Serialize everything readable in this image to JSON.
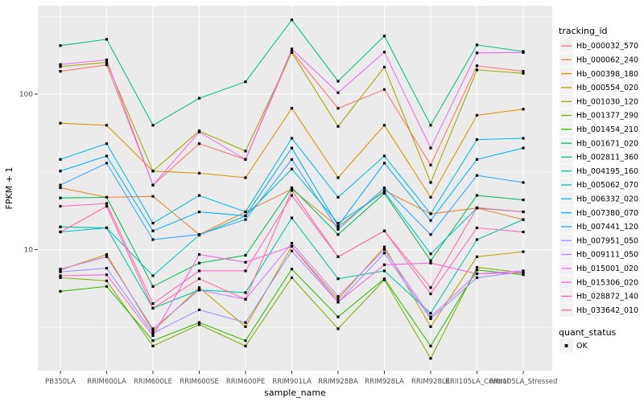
{
  "chart_data": {
    "type": "line",
    "title": "",
    "xlabel": "sample_name",
    "ylabel": "FPKM + 1",
    "y_scale": "log10",
    "y_breaks": [
      100,
      10
    ],
    "y_tick_labels": [
      "100",
      "10"
    ],
    "y_minor_breaks": [
      316.2,
      31.62,
      3.162
    ],
    "ylim": [
      1.6,
      350
    ],
    "grid": true,
    "panel_bg": "#EBEBEB",
    "grid_color": "#FFFFFF",
    "axis_text_color": "#4D4D4D",
    "tick_mark_color": "#333333",
    "legend_key_bg": "#F2F2F2",
    "marker": "black-square",
    "marker_color": "#000000",
    "categories": [
      "PB350LA",
      "RRIM600LA",
      "RRIM600LE",
      "RRIM600SE",
      "RRIM600PE",
      "RRIM901LA",
      "RRIM928BA",
      "RRIM928LA",
      "RRIM928LE",
      "RRII105LA_Control",
      "RRII105LA_Stressed"
    ],
    "legend": {
      "color_title": "tracking_id",
      "shape_title": "quant_status",
      "shape_items": [
        {
          "label": "OK",
          "marker": "black-square"
        }
      ]
    },
    "series": [
      {
        "name": "Hb_000032_570",
        "color": "#F8766D",
        "values": [
          140,
          154,
          26,
          48,
          38,
          188,
          81,
          107,
          35,
          152,
          140
        ]
      },
      {
        "name": "Hb_000062_240",
        "color": "#EA8331",
        "values": [
          25,
          21.7,
          22,
          12.5,
          17.5,
          24.5,
          14,
          24,
          17,
          18.5,
          15.6
        ]
      },
      {
        "name": "Hb_000398_180",
        "color": "#D89000",
        "values": [
          65,
          63,
          32,
          31,
          29,
          81,
          29,
          63,
          21.7,
          73,
          80
        ]
      },
      {
        "name": "Hb_000554_020",
        "color": "#C09B00",
        "values": [
          7.4,
          9.3,
          3.0,
          5.7,
          3.2,
          10.5,
          4.8,
          10.4,
          3.2,
          9.0,
          9.7
        ]
      },
      {
        "name": "Hb_001030_120",
        "color": "#A3A500",
        "values": [
          150,
          160,
          32,
          58,
          43,
          185,
          62,
          149,
          27,
          143,
          136
        ]
      },
      {
        "name": "Hb_001377_290",
        "color": "#7CAE00",
        "values": [
          6.6,
          6.3,
          2.4,
          3.3,
          2.4,
          6.6,
          3.1,
          6.4,
          2.0,
          7.7,
          7.1
        ]
      },
      {
        "name": "Hb_001454_210",
        "color": "#39B600",
        "values": [
          5.4,
          5.8,
          2.6,
          3.4,
          2.6,
          7.5,
          3.7,
          6.5,
          2.4,
          7.4,
          6.9
        ]
      },
      {
        "name": "Hb_001671_020",
        "color": "#00BB4E",
        "values": [
          21.5,
          21.7,
          5.8,
          8.2,
          9.2,
          25,
          12.5,
          23,
          8.5,
          22.3,
          20.9
        ]
      },
      {
        "name": "Hb_002811_360",
        "color": "#00BF7D",
        "values": [
          205,
          225,
          63,
          94,
          120,
          300,
          121,
          236,
          63,
          207,
          188
        ]
      },
      {
        "name": "Hb_004195_160",
        "color": "#00C1A3",
        "values": [
          14,
          13.8,
          4.2,
          5.5,
          5.3,
          16,
          6.5,
          7.3,
          3.9,
          11.6,
          15.6
        ]
      },
      {
        "name": "Hb_005062_070",
        "color": "#00BFC4",
        "values": [
          13,
          13.8,
          6.8,
          12.4,
          16.5,
          33,
          14.8,
          23.5,
          9.4,
          18.5,
          17.5
        ]
      },
      {
        "name": "Hb_006332_020",
        "color": "#00BAE0",
        "values": [
          38,
          48,
          14.8,
          22.3,
          17.5,
          52,
          21.7,
          40,
          17,
          51,
          52
        ]
      },
      {
        "name": "Hb_007380_070",
        "color": "#00B0F6",
        "values": [
          32,
          40,
          13.2,
          17.5,
          16.5,
          45,
          14.2,
          36,
          15.4,
          38,
          45
        ]
      },
      {
        "name": "Hb_007441_120",
        "color": "#35A2FF",
        "values": [
          26,
          36,
          11.6,
          12.5,
          15.6,
          38,
          13.5,
          25,
          12.5,
          30,
          27
        ]
      },
      {
        "name": "Hb_007951_050",
        "color": "#9590FF",
        "values": [
          7.2,
          7.6,
          2.9,
          4.1,
          3.4,
          9.8,
          4.6,
          9.5,
          3.6,
          6.6,
          7.2
        ]
      },
      {
        "name": "Hb_009111_050",
        "color": "#C77CFF",
        "values": [
          7.5,
          9.0,
          3.1,
          5.5,
          4.8,
          11,
          5.0,
          10.0,
          3.7,
          7.0,
          7.3
        ]
      },
      {
        "name": "Hb_015001_020",
        "color": "#E76BF3",
        "values": [
          155,
          166,
          26,
          57,
          38,
          195,
          102,
          186,
          45,
          184,
          185
        ]
      },
      {
        "name": "Hb_015306_020",
        "color": "#FA62DB",
        "values": [
          6.8,
          6.9,
          2.8,
          9.3,
          8.3,
          10.5,
          4.6,
          8.0,
          8.2,
          7.0,
          7.1
        ]
      },
      {
        "name": "Hb_028872_140",
        "color": "#FF62BC",
        "values": [
          19,
          19.8,
          4.5,
          7.3,
          7.3,
          22.3,
          9.0,
          13.2,
          5.2,
          13.8,
          13.0
        ]
      },
      {
        "name": "Hb_033642_010",
        "color": "#FF6A98",
        "values": [
          13,
          19,
          4.2,
          6.5,
          4.8,
          24,
          9.0,
          13.2,
          5.7,
          18.6,
          17.5
        ]
      }
    ]
  }
}
